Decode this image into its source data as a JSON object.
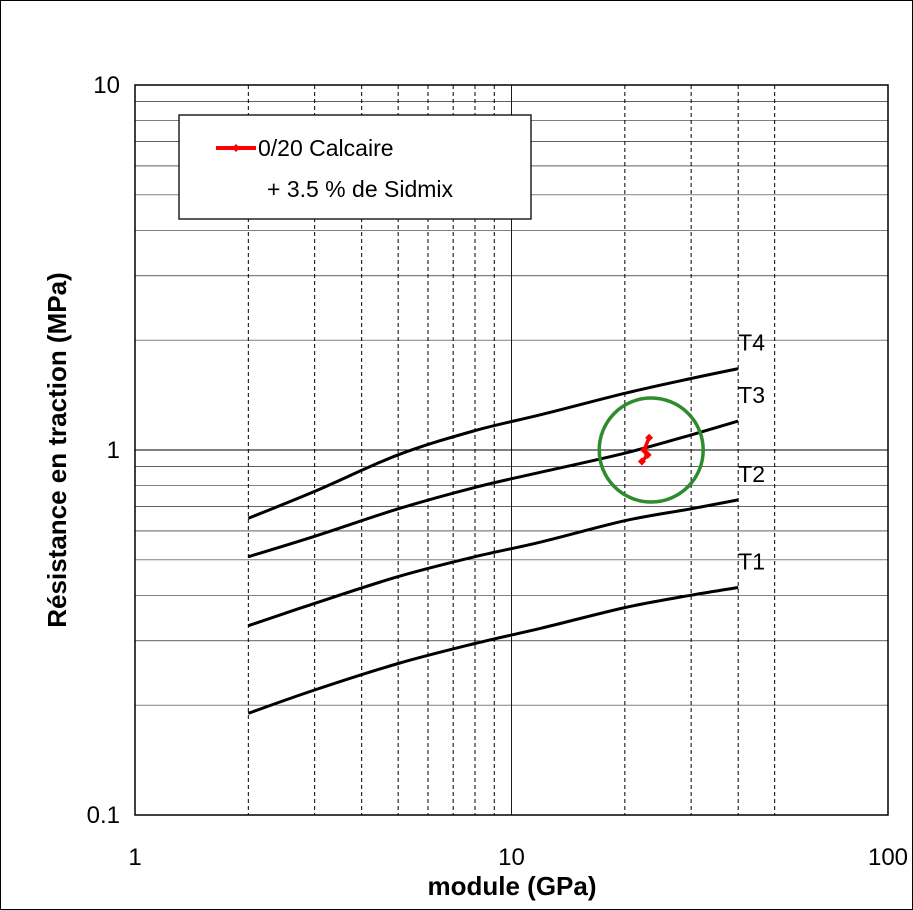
{
  "chart_data": {
    "type": "line",
    "title": "",
    "xlabel": "module (GPa)",
    "ylabel": "Résistance en traction (MPa)",
    "x_scale": "log",
    "y_scale": "log",
    "xlim": [
      1,
      100
    ],
    "ylim": [
      0.1,
      10
    ],
    "x_ticks": [
      1,
      10,
      100
    ],
    "x_tick_labels": [
      "1",
      "10",
      "100"
    ],
    "y_ticks": [
      0.1,
      1,
      10
    ],
    "y_tick_labels": [
      "0.1",
      "1",
      "10"
    ],
    "x_dashed_gridlines": [
      2,
      3,
      4,
      5,
      6,
      7,
      8,
      9,
      20,
      30,
      40,
      50
    ],
    "x_major_gridlines": [
      10
    ],
    "y_gridlines": [
      0.2,
      0.3,
      0.4,
      0.5,
      0.6,
      0.7,
      0.8,
      0.9,
      2,
      3,
      4,
      5,
      6,
      7,
      8,
      9
    ],
    "grid": true,
    "legend_position": "top-left",
    "legend": {
      "line1": "0/20 Calcaire",
      "line2": "+ 3.5 % de Sidmix"
    },
    "series": [
      {
        "label": "T1",
        "color": "#000000",
        "x": [
          2,
          3,
          5,
          8,
          12,
          20,
          30,
          40
        ],
        "y": [
          0.19,
          0.22,
          0.26,
          0.295,
          0.325,
          0.37,
          0.4,
          0.42
        ]
      },
      {
        "label": "T2",
        "color": "#000000",
        "x": [
          2,
          3,
          5,
          8,
          12,
          20,
          30,
          40
        ],
        "y": [
          0.33,
          0.38,
          0.45,
          0.51,
          0.56,
          0.64,
          0.69,
          0.73
        ]
      },
      {
        "label": "T3",
        "color": "#000000",
        "x": [
          2,
          3,
          5,
          8,
          12,
          20,
          30,
          40
        ],
        "y": [
          0.51,
          0.58,
          0.69,
          0.79,
          0.87,
          0.98,
          1.1,
          1.2
        ]
      },
      {
        "label": "T4",
        "color": "#000000",
        "x": [
          2,
          3,
          5,
          8,
          12,
          20,
          30,
          40
        ],
        "y": [
          0.65,
          0.77,
          0.97,
          1.13,
          1.25,
          1.43,
          1.57,
          1.67
        ]
      },
      {
        "name": "0/20 Calcaire + 3.5 % de Sidmix",
        "color": "#ff0000",
        "x": [
          22.2,
          23.0,
          22.5,
          23.2
        ],
        "y": [
          0.93,
          0.97,
          1.0,
          1.08
        ]
      }
    ],
    "annotation_circle": {
      "color": "#2e8b2e",
      "center_x": 23.5,
      "center_y": 1.0
    }
  }
}
